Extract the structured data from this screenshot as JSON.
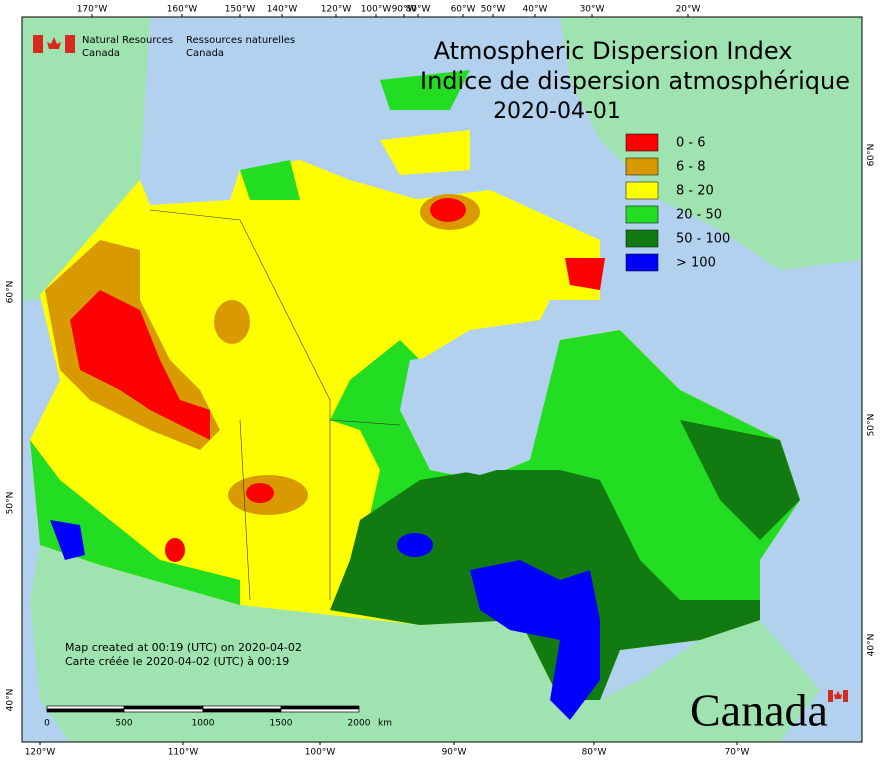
{
  "header": {
    "agency_en": [
      "Natural Resources",
      "Canada"
    ],
    "agency_fr": [
      "Ressources naturelles",
      "Canada"
    ]
  },
  "title": "Atmospheric Dispersion Index",
  "subtitle": "Indice de dispersion atmosphérique",
  "date": "2020-04-01",
  "legend": [
    {
      "label": "0 - 6",
      "color": "#ff0000"
    },
    {
      "label": "6 - 8",
      "color": "#d89a00"
    },
    {
      "label": "8 - 20",
      "color": "#ffff00"
    },
    {
      "label": "20 - 50",
      "color": "#22dd22"
    },
    {
      "label": "50 - 100",
      "color": "#117a11"
    },
    {
      "label": "> 100",
      "color": "#0000ff"
    }
  ],
  "top_longitudes": [
    "170°W",
    "160°W",
    "150°W",
    "140°W",
    "120°W",
    "100°W",
    "90°W",
    "80°W",
    "60°W",
    "50°W",
    "40°W",
    "30°W",
    "20°W"
  ],
  "bottom_longitudes": [
    "120°W",
    "110°W",
    "100°W",
    "90°W",
    "80°W",
    "70°W"
  ],
  "left_latitudes": [
    "60°N",
    "50°N",
    "40°N"
  ],
  "right_latitudes": [
    "60°N",
    "50°N",
    "40°N"
  ],
  "notes": [
    "Map created at 00:19 (UTC) on 2020-04-02",
    "Carte créée le 2020-04-02 (UTC) à 00:19"
  ],
  "scale": {
    "ticks": [
      "0",
      "500",
      "1000",
      "1500",
      "2000"
    ],
    "unit": "km"
  },
  "wordmark": "Canada"
}
